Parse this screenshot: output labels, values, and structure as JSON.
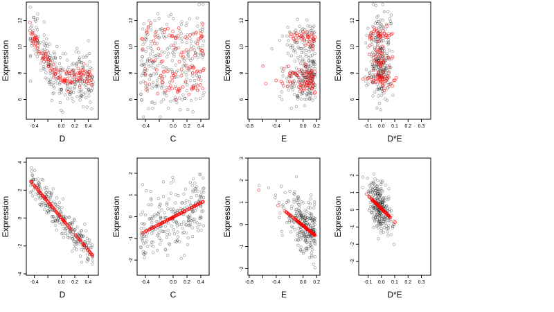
{
  "chart_data": [
    {
      "type": "scatter",
      "xlabel": "D",
      "ylabel": "Expression",
      "xlim": [
        -0.52,
        0.55
      ],
      "ylim": [
        4.5,
        13.4
      ],
      "xticks": [
        -0.4,
        -0.2,
        0.0,
        0.2,
        0.4
      ],
      "xtick_labels": [
        "-0.4",
        "",
        "0.0",
        "0.2",
        "0.4"
      ],
      "yticks": [
        6,
        8,
        10,
        12
      ],
      "ytick_labels": [
        "6",
        "8",
        "10",
        "12"
      ],
      "trend": {
        "kind": "curve",
        "points": [
          [
            -0.5,
            11.0
          ],
          [
            -0.4,
            10.7
          ],
          [
            -0.3,
            9.6
          ],
          [
            -0.2,
            8.8
          ],
          [
            -0.1,
            8.0
          ],
          [
            0.0,
            7.6
          ],
          [
            0.1,
            7.6
          ],
          [
            0.2,
            7.7
          ],
          [
            0.3,
            7.8
          ],
          [
            0.4,
            7.6
          ],
          [
            0.5,
            7.5
          ]
        ],
        "sd": 1.0,
        "xspread": "uniform"
      }
    },
    {
      "type": "scatter",
      "xlabel": "C",
      "ylabel": "Expression",
      "xlim": [
        -0.52,
        0.52
      ],
      "ylim": [
        4.5,
        13.4
      ],
      "xticks": [
        -0.4,
        -0.2,
        0.0,
        0.2,
        0.4
      ],
      "xtick_labels": [
        "-0.4",
        "",
        "0.0",
        "0.2",
        "0.4"
      ],
      "yticks": [
        6,
        8,
        10,
        12
      ],
      "ytick_labels": [
        "6",
        "8",
        "10",
        "12"
      ],
      "trend": {
        "kind": "bands",
        "levels": [
          6.8,
          8.2,
          9.6,
          10.9
        ],
        "sd": 1.1,
        "xspread": "uniform"
      }
    },
    {
      "type": "scatter",
      "xlabel": "E",
      "ylabel": "Expression",
      "xlim": [
        -0.82,
        0.25
      ],
      "ylim": [
        4.5,
        13.4
      ],
      "xticks": [
        -0.8,
        -0.6,
        -0.4,
        -0.2,
        0.0,
        0.2
      ],
      "xtick_labels": [
        "-0.8",
        "",
        "-0.4",
        "",
        "0.0",
        "0.2"
      ],
      "yticks": [
        6,
        8,
        10,
        12
      ],
      "ytick_labels": [
        "6",
        "8",
        "10",
        "12"
      ],
      "trend": {
        "kind": "bands",
        "levels": [
          7.2,
          8.0,
          10.6
        ],
        "sd": 0.9,
        "xspread": "right"
      }
    },
    {
      "type": "scatter",
      "xlabel": "D*E",
      "ylabel": "Expression",
      "xlim": [
        -0.17,
        0.37
      ],
      "ylim": [
        4.5,
        13.4
      ],
      "xticks": [
        -0.1,
        0.0,
        0.1,
        0.2,
        0.3
      ],
      "xtick_labels": [
        "-0.1",
        "0.0",
        "0.1",
        "0.2",
        "0.3"
      ],
      "yticks": [
        6,
        8,
        10,
        12
      ],
      "ytick_labels": [
        "6",
        "8",
        "10",
        "12"
      ],
      "trend": {
        "kind": "bands",
        "levels": [
          7.5,
          9.0,
          10.8
        ],
        "sd": 1.0,
        "xspread": "center"
      }
    },
    {
      "type": "scatter",
      "xlabel": "D",
      "ylabel": "Expression",
      "xlim": [
        -0.52,
        0.55
      ],
      "ylim": [
        -4.1,
        4.3
      ],
      "xticks": [
        -0.4,
        -0.2,
        0.0,
        0.2,
        0.4
      ],
      "xtick_labels": [
        "-0.4",
        "",
        "0.0",
        "0.2",
        "0.4"
      ],
      "yticks": [
        -4,
        -2,
        0,
        2,
        4
      ],
      "ytick_labels": [
        "-4",
        "-2",
        "0",
        "2",
        "4"
      ],
      "trend": {
        "kind": "line",
        "x0": -0.5,
        "y0": 2.9,
        "x1": 0.52,
        "y1": -3.0,
        "sd": 0.55,
        "xspread": "uniform"
      }
    },
    {
      "type": "scatter",
      "xlabel": "C",
      "ylabel": "Expression",
      "xlim": [
        -0.52,
        0.52
      ],
      "ylim": [
        -2.7,
        2.7
      ],
      "xticks": [
        -0.4,
        -0.2,
        0.0,
        0.2,
        0.4
      ],
      "xtick_labels": [
        "-0.4",
        "",
        "0.0",
        "0.2",
        "0.4"
      ],
      "yticks": [
        -2,
        -1,
        0,
        1,
        2
      ],
      "ytick_labels": [
        "-2",
        "-1",
        "0",
        "1",
        "2"
      ],
      "trend": {
        "kind": "line",
        "x0": -0.5,
        "y0": -0.85,
        "x1": 0.5,
        "y1": 0.8,
        "sd": 0.75,
        "xspread": "uniform"
      }
    },
    {
      "type": "scatter",
      "xlabel": "E",
      "ylabel": "Expression",
      "xlim": [
        -0.82,
        0.25
      ],
      "ylim": [
        -2.3,
        3.0
      ],
      "xticks": [
        -0.8,
        -0.6,
        -0.4,
        -0.2,
        0.0,
        0.2
      ],
      "xtick_labels": [
        "-0.8",
        "",
        "-0.4",
        "",
        "0.0",
        "0.2"
      ],
      "yticks": [
        -2,
        -1,
        0,
        1,
        2,
        3
      ],
      "ytick_labels": [
        "-2",
        "-1",
        "0",
        "1",
        "2",
        "3"
      ],
      "trend": {
        "kind": "line",
        "x0": -0.8,
        "y0": 1.9,
        "x1": 0.22,
        "y1": -0.6,
        "sd": 0.6,
        "xspread": "right"
      }
    },
    {
      "type": "scatter",
      "xlabel": "D*E",
      "ylabel": "Expression",
      "xlim": [
        -0.17,
        0.37
      ],
      "ylim": [
        -3.8,
        3.0
      ],
      "xticks": [
        -0.1,
        0.0,
        0.1,
        0.2,
        0.3
      ],
      "xtick_labels": [
        "-0.1",
        "0.0",
        "0.1",
        "0.2",
        "0.3"
      ],
      "yticks": [
        -3,
        -2,
        -1,
        0,
        1,
        2
      ],
      "ytick_labels": [
        "-3",
        "-2",
        "-1",
        "0",
        "1",
        "2"
      ],
      "trend": {
        "kind": "line",
        "x0": -0.15,
        "y0": 1.2,
        "x1": 0.35,
        "y1": -2.6,
        "sd": 0.65,
        "xspread": "center"
      }
    }
  ]
}
